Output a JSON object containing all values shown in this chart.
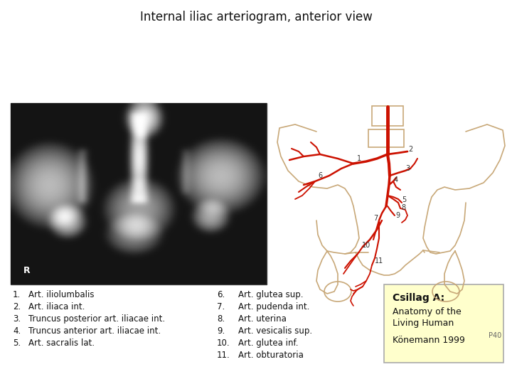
{
  "title": "Internal iliac arteriogram, anterior view",
  "title_fontsize": 12,
  "bg_color": "#ffffff",
  "left_items": [
    [
      "1.",
      "Art. iliolumbalis"
    ],
    [
      "2.",
      "Art. iliaca int."
    ],
    [
      "3.",
      "Truncus posterior art. iliacae int."
    ],
    [
      "4.",
      "Truncus anterior art. iliacae int."
    ],
    [
      "5.",
      "Art. sacralis lat."
    ]
  ],
  "right_items": [
    [
      "6.",
      "Art. glutea sup."
    ],
    [
      "7.",
      "Art. pudenda int."
    ],
    [
      "8.",
      "Art. uterina"
    ],
    [
      "9.",
      "Art. vesicalis sup."
    ],
    [
      "10.",
      "Art. glutea inf."
    ],
    [
      "11.",
      "Art. obturatoria"
    ]
  ],
  "citation_title": "Csillag A:",
  "citation_line1": "Anatomy of the",
  "citation_line2": "Living Human",
  "citation_line3": "Könemann 1999",
  "citation_box_color": "#ffffcc",
  "citation_border_color": "#aaaaaa",
  "page_note": "P40",
  "pelvis_color": "#c8a878",
  "artery_color": "#cc1100",
  "label_color": "#333333",
  "text_fontsize": 8.5,
  "citation_title_fontsize": 10
}
